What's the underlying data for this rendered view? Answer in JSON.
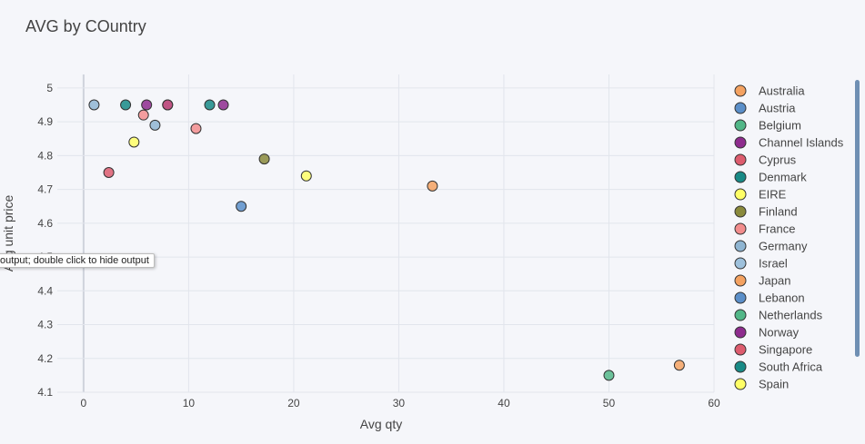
{
  "tooltip": "output; double click to hide output",
  "legend": {
    "items": [
      {
        "label": "Australia",
        "color": "#f4a261"
      },
      {
        "label": "Austria",
        "color": "#5b8fc9"
      },
      {
        "label": "Belgium",
        "color": "#52b788"
      },
      {
        "label": "Channel Islands",
        "color": "#8e2c8e"
      },
      {
        "label": "Cyprus",
        "color": "#dd5c6e"
      },
      {
        "label": "Denmark",
        "color": "#188a86"
      },
      {
        "label": "EIRE",
        "color": "#ffff66"
      },
      {
        "label": "Finland",
        "color": "#8a8a3c"
      },
      {
        "label": "France",
        "color": "#f28d8d"
      },
      {
        "label": "Germany",
        "color": "#8fb5d2"
      },
      {
        "label": "Israel",
        "color": "#9ec1dc"
      },
      {
        "label": "Japan",
        "color": "#f4a261"
      },
      {
        "label": "Lebanon",
        "color": "#5b8fc9"
      },
      {
        "label": "Netherlands",
        "color": "#52b788"
      },
      {
        "label": "Norway",
        "color": "#8e2c8e"
      },
      {
        "label": "Singapore",
        "color": "#dd5c6e"
      },
      {
        "label": "South Africa",
        "color": "#188a86"
      },
      {
        "label": "Spain",
        "color": "#ffff66"
      }
    ]
  },
  "chart_data": {
    "type": "scatter",
    "title": "AVG by COuntry",
    "xlabel": "Avg qty",
    "ylabel": "Avg unit price",
    "xlim": [
      -2.5,
      60
    ],
    "ylim": [
      4.1,
      5.04
    ],
    "xticks": [
      0,
      10,
      20,
      30,
      40,
      50,
      60
    ],
    "yticks": [
      4.1,
      4.2,
      4.3,
      4.4,
      4.5,
      4.6,
      4.7,
      4.8,
      4.9,
      5
    ],
    "grid": true,
    "legend_position": "right",
    "points": [
      {
        "x": 1.0,
        "y": 4.95,
        "color": "#8fb5d2"
      },
      {
        "x": 4.0,
        "y": 4.95,
        "color": "#188a86"
      },
      {
        "x": 6.0,
        "y": 4.95,
        "color": "#8e2c8e"
      },
      {
        "x": 8.0,
        "y": 4.95,
        "color": "#8e2c8e"
      },
      {
        "x": 8.0,
        "y": 4.95,
        "color": "#dd5c6e",
        "opacity": 0.55
      },
      {
        "x": 12.0,
        "y": 4.95,
        "color": "#188a86"
      },
      {
        "x": 13.3,
        "y": 4.95,
        "color": "#8e2c8e"
      },
      {
        "x": 5.7,
        "y": 4.92,
        "color": "#f28d8d"
      },
      {
        "x": 6.8,
        "y": 4.89,
        "color": "#8fb5d2"
      },
      {
        "x": 10.7,
        "y": 4.88,
        "color": "#f28d8d"
      },
      {
        "x": 4.8,
        "y": 4.84,
        "color": "#ffff66"
      },
      {
        "x": 17.2,
        "y": 4.79,
        "color": "#8a8a3c"
      },
      {
        "x": 2.4,
        "y": 4.75,
        "color": "#dd5c6e"
      },
      {
        "x": 21.2,
        "y": 4.74,
        "color": "#ffff66"
      },
      {
        "x": 33.2,
        "y": 4.71,
        "color": "#f4a261"
      },
      {
        "x": 15.0,
        "y": 4.65,
        "color": "#5b8fc9"
      },
      {
        "x": 56.7,
        "y": 4.18,
        "color": "#f4a261"
      },
      {
        "x": 50.0,
        "y": 4.15,
        "color": "#52b788"
      }
    ]
  }
}
